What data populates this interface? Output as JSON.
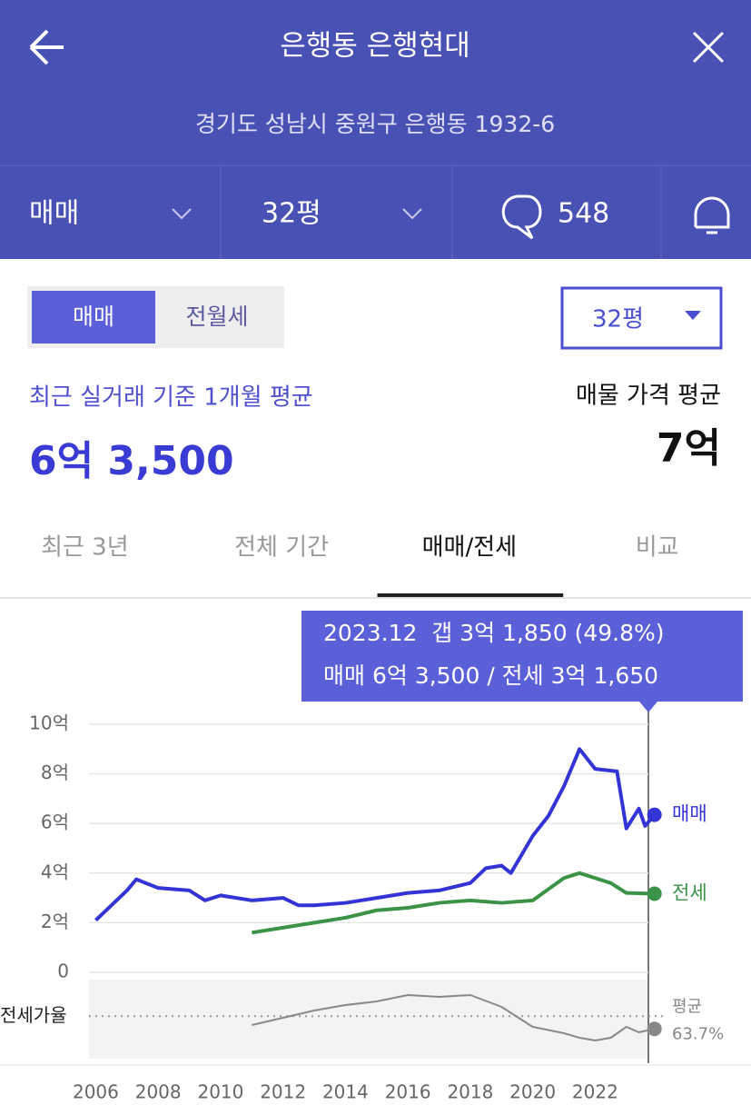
{
  "header": {
    "title": "은행동 은행현대",
    "address": "경기도 성남시 중원구 은행동 1932-6"
  },
  "toolbar": {
    "trade": "매매",
    "size": "32평",
    "comments": 548
  },
  "toggle": {
    "options": [
      "매매",
      "전월세"
    ],
    "selected": 0
  },
  "size_select": "32평",
  "summary": {
    "recent_label": "최근 실거래 기준 1개월 평균",
    "recent_value": "6억 3,500",
    "listing_label": "매물 가격 평균",
    "listing_value": "7억"
  },
  "tabs": {
    "items": [
      "최근 3년",
      "전체 기간",
      "매매/전세",
      "비교"
    ],
    "active": 2
  },
  "tooltip": {
    "line1": "2023.12  갭 3억 1,850 (49.8%)",
    "line2": "매매 6억 3,500 / 전세 3억 1,650"
  },
  "chart_data": [
    {
      "type": "line",
      "xlim": [
        2005.9,
        2024.2
      ],
      "xticks": [
        2006,
        2008,
        2010,
        2012,
        2014,
        2016,
        2018,
        2020,
        2022
      ],
      "ylim": [
        0,
        10
      ],
      "yticks": [
        0,
        {
          "value": 2,
          "label": "2억"
        },
        {
          "value": 4,
          "label": "4억"
        },
        {
          "value": 6,
          "label": "6억"
        },
        {
          "value": 8,
          "label": "8억"
        },
        {
          "value": 10,
          "label": "10억"
        }
      ],
      "grid": true,
      "series": [
        {
          "name": "매매",
          "color": "#3434d6",
          "x": [
            2006.0,
            2006.5,
            2007.0,
            2007.3,
            2008.0,
            2009.0,
            2009.5,
            2010.0,
            2011.0,
            2012.0,
            2012.5,
            2013.0,
            2014.0,
            2015.0,
            2016.0,
            2017.0,
            2018.0,
            2018.5,
            2019.0,
            2019.3,
            2020.0,
            2020.5,
            2021.0,
            2021.5,
            2022.0,
            2022.7,
            2023.0,
            2023.4,
            2023.6,
            2023.9
          ],
          "values": [
            2.1,
            2.7,
            3.3,
            3.75,
            3.4,
            3.3,
            2.9,
            3.1,
            2.9,
            3.0,
            2.7,
            2.7,
            2.8,
            3.0,
            3.2,
            3.3,
            3.6,
            4.2,
            4.3,
            4.0,
            5.5,
            6.3,
            7.5,
            9.0,
            8.2,
            8.1,
            5.8,
            6.6,
            5.9,
            6.35
          ]
        },
        {
          "name": "전세",
          "color": "#3a9346",
          "x": [
            2011.0,
            2012.0,
            2013.0,
            2014.0,
            2015.0,
            2016.0,
            2017.0,
            2018.0,
            2019.0,
            2020.0,
            2021.0,
            2021.5,
            2022.0,
            2022.5,
            2023.0,
            2023.9
          ],
          "values": [
            1.6,
            1.8,
            2.0,
            2.2,
            2.5,
            2.6,
            2.8,
            2.9,
            2.8,
            2.9,
            3.8,
            4.0,
            3.8,
            3.6,
            3.2,
            3.17
          ]
        }
      ]
    },
    {
      "type": "line",
      "label": "전세가율",
      "xlim": [
        2005.9,
        2024.2
      ],
      "ylim": [
        17,
        104
      ],
      "average": {
        "label": "평균",
        "value": 63.7,
        "value_label": "63.7%"
      },
      "series": [
        {
          "name": "전세가율",
          "color": "#888888",
          "x": [
            2011.0,
            2012.0,
            2013.0,
            2014.0,
            2015.0,
            2016.0,
            2017.0,
            2018.0,
            2019.0,
            2020.0,
            2021.0,
            2021.5,
            2022.0,
            2022.5,
            2023.0,
            2023.4,
            2023.9
          ],
          "values": [
            54,
            62,
            70,
            76,
            80,
            87,
            85,
            87,
            74,
            52,
            45,
            40,
            37,
            40,
            52,
            46,
            49.8
          ]
        }
      ]
    }
  ]
}
